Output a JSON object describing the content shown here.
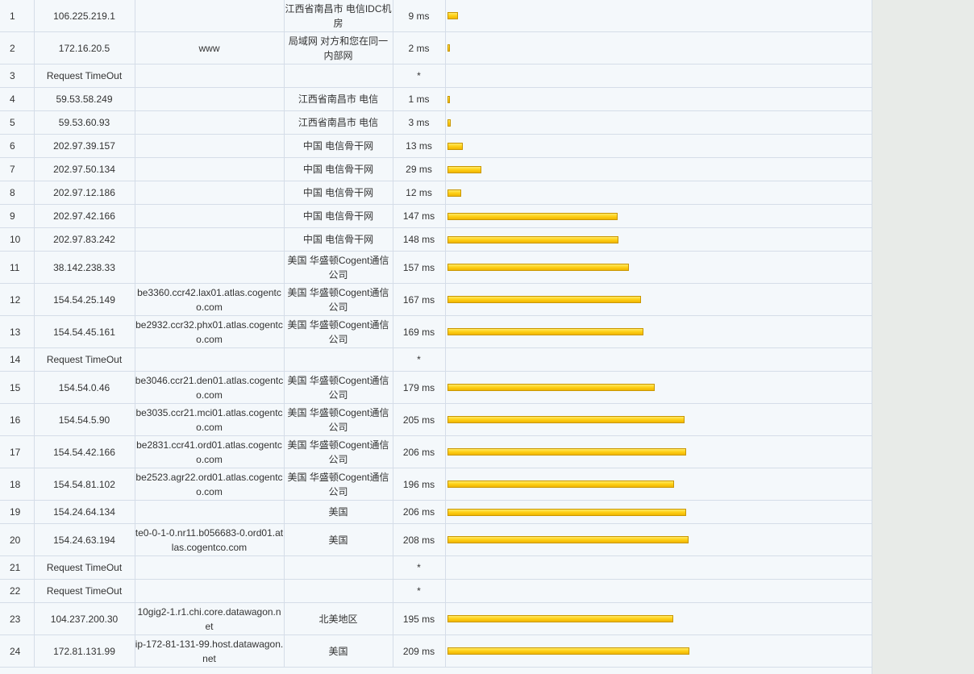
{
  "trace": {
    "bar_max_ms": 209,
    "hops": [
      {
        "hop": "1",
        "ip": "106.225.219.1",
        "host": "",
        "location": "江西省南昌市 电信IDC机房",
        "time": "9 ms",
        "ms": 9
      },
      {
        "hop": "2",
        "ip": "172.16.20.5",
        "host": "www",
        "location": "局域网 对方和您在同一内部网",
        "time": "2 ms",
        "ms": 2
      },
      {
        "hop": "3",
        "ip": "Request TimeOut",
        "host": "",
        "location": "",
        "time": "*",
        "ms": 0
      },
      {
        "hop": "4",
        "ip": "59.53.58.249",
        "host": "",
        "location": "江西省南昌市 电信",
        "time": "1 ms",
        "ms": 1
      },
      {
        "hop": "5",
        "ip": "59.53.60.93",
        "host": "",
        "location": "江西省南昌市 电信",
        "time": "3 ms",
        "ms": 3
      },
      {
        "hop": "6",
        "ip": "202.97.39.157",
        "host": "",
        "location": "中国 电信骨干网",
        "time": "13 ms",
        "ms": 13
      },
      {
        "hop": "7",
        "ip": "202.97.50.134",
        "host": "",
        "location": "中国 电信骨干网",
        "time": "29 ms",
        "ms": 29
      },
      {
        "hop": "8",
        "ip": "202.97.12.186",
        "host": "",
        "location": "中国 电信骨干网",
        "time": "12 ms",
        "ms": 12
      },
      {
        "hop": "9",
        "ip": "202.97.42.166",
        "host": "",
        "location": "中国 电信骨干网",
        "time": "147 ms",
        "ms": 147
      },
      {
        "hop": "10",
        "ip": "202.97.83.242",
        "host": "",
        "location": "中国 电信骨干网",
        "time": "148 ms",
        "ms": 148
      },
      {
        "hop": "11",
        "ip": "38.142.238.33",
        "host": "",
        "location": "美国 华盛顿Cogent通信公司",
        "time": "157 ms",
        "ms": 157
      },
      {
        "hop": "12",
        "ip": "154.54.25.149",
        "host": "be3360.ccr42.lax01.atlas.cogentco.com",
        "location": "美国 华盛顿Cogent通信公司",
        "time": "167 ms",
        "ms": 167
      },
      {
        "hop": "13",
        "ip": "154.54.45.161",
        "host": "be2932.ccr32.phx01.atlas.cogentco.com",
        "location": "美国 华盛顿Cogent通信公司",
        "time": "169 ms",
        "ms": 169
      },
      {
        "hop": "14",
        "ip": "Request TimeOut",
        "host": "",
        "location": "",
        "time": "*",
        "ms": 0
      },
      {
        "hop": "15",
        "ip": "154.54.0.46",
        "host": "be3046.ccr21.den01.atlas.cogentco.com",
        "location": "美国 华盛顿Cogent通信公司",
        "time": "179 ms",
        "ms": 179
      },
      {
        "hop": "16",
        "ip": "154.54.5.90",
        "host": "be3035.ccr21.mci01.atlas.cogentco.com",
        "location": "美国 华盛顿Cogent通信公司",
        "time": "205 ms",
        "ms": 205
      },
      {
        "hop": "17",
        "ip": "154.54.42.166",
        "host": "be2831.ccr41.ord01.atlas.cogentco.com",
        "location": "美国 华盛顿Cogent通信公司",
        "time": "206 ms",
        "ms": 206
      },
      {
        "hop": "18",
        "ip": "154.54.81.102",
        "host": "be2523.agr22.ord01.atlas.cogentco.com",
        "location": "美国 华盛顿Cogent通信公司",
        "time": "196 ms",
        "ms": 196
      },
      {
        "hop": "19",
        "ip": "154.24.64.134",
        "host": "",
        "location": "美国",
        "time": "206 ms",
        "ms": 206
      },
      {
        "hop": "20",
        "ip": "154.24.63.194",
        "host": "te0-0-1-0.nr11.b056683-0.ord01.atlas.cogentco.com",
        "location": "美国",
        "time": "208 ms",
        "ms": 208
      },
      {
        "hop": "21",
        "ip": "Request TimeOut",
        "host": "",
        "location": "",
        "time": "*",
        "ms": 0
      },
      {
        "hop": "22",
        "ip": "Request TimeOut",
        "host": "",
        "location": "",
        "time": "*",
        "ms": 0
      },
      {
        "hop": "23",
        "ip": "104.237.200.30",
        "host": "10gig2-1.r1.chi.core.datawagon.net",
        "location": "北美地区",
        "time": "195 ms",
        "ms": 195
      },
      {
        "hop": "24",
        "ip": "172.81.131.99",
        "host": "ip-172-81-131-99.host.datawagon.net",
        "location": "美国",
        "time": "209 ms",
        "ms": 209
      }
    ]
  }
}
